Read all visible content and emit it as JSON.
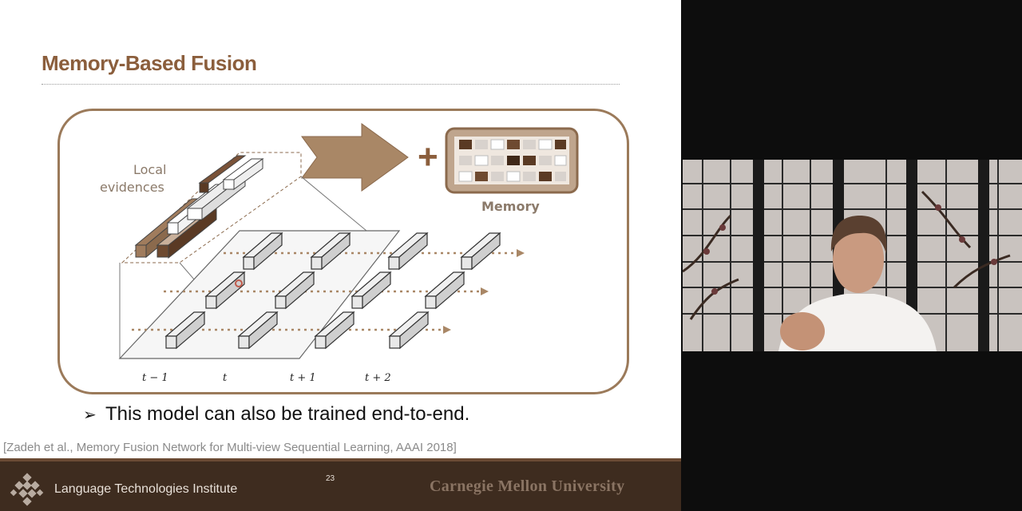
{
  "slide": {
    "title": "Memory-Based Fusion",
    "figure": {
      "local_evidences_line1": "Local",
      "local_evidences_line2": "evidences",
      "plus": "+",
      "memory_label": "Memory",
      "time_labels": [
        "t − 1",
        "t",
        "t + 1",
        "t + 2"
      ]
    },
    "bullet": "This model can also be trained end-to-end.",
    "citation": "[Zadeh et al., Memory Fusion Network for Multi-view Sequential Learning, AAAI 2018]"
  },
  "footer": {
    "institute": "Language Technologies Institute",
    "page_number": "23",
    "university": "Carnegie Mellon University"
  },
  "colors": {
    "title": "#8b5e3c",
    "figure_border": "#9b7a5a",
    "footer_bg": "#3e2c1f",
    "arrow": "#a98766",
    "dark_block": "#5a3a24"
  },
  "webcam": {
    "icon": "speaker-video-feed"
  }
}
